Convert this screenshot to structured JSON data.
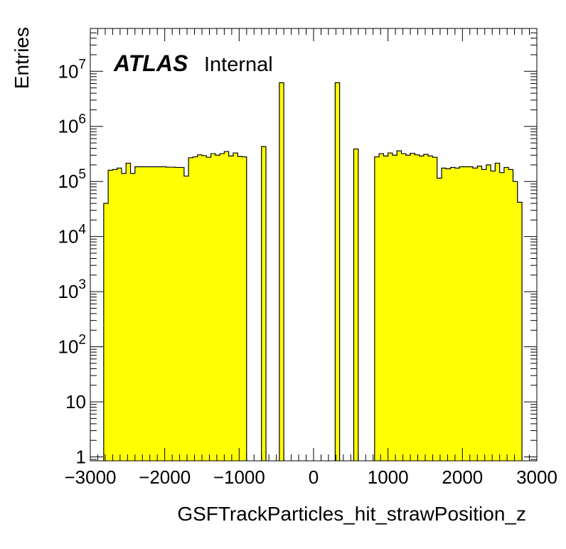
{
  "chart_data": {
    "type": "histogram",
    "xlabel": "GSFTrackParticles_hit_strawPosition_z",
    "ylabel": "Entries",
    "xlim": [
      -3000,
      3000
    ],
    "ylim": [
      0.85,
      60000000
    ],
    "log_y": true,
    "grid": false,
    "label": {
      "experiment": "ATLAS",
      "status": "Internal"
    },
    "x_tick_labels": [
      "−3000",
      "−2000",
      "−1000",
      "0",
      "1000",
      "2000",
      "3000"
    ],
    "y_ticks": [
      {
        "value": 1,
        "base": "1",
        "exp": ""
      },
      {
        "value": 10,
        "base": "10",
        "exp": ""
      },
      {
        "value": 100,
        "base": "10",
        "exp": "2"
      },
      {
        "value": 1000,
        "base": "10",
        "exp": "3"
      },
      {
        "value": 10000,
        "base": "10",
        "exp": "4"
      },
      {
        "value": 100000,
        "base": "10",
        "exp": "5"
      },
      {
        "value": 1000000,
        "base": "10",
        "exp": "6"
      },
      {
        "value": 10000000,
        "base": "10",
        "exp": "7"
      }
    ],
    "bin_width": 60,
    "fill_color": "#ffff00",
    "line_color": "#000000",
    "bins": [
      {
        "x0": -2820,
        "y": 40000
      },
      {
        "x0": -2760,
        "y": 160000
      },
      {
        "x0": -2700,
        "y": 165000
      },
      {
        "x0": -2640,
        "y": 175000
      },
      {
        "x0": -2580,
        "y": 140000
      },
      {
        "x0": -2520,
        "y": 215000
      },
      {
        "x0": -2460,
        "y": 140000
      },
      {
        "x0": -2400,
        "y": 185000
      },
      {
        "x0": -2340,
        "y": 185000
      },
      {
        "x0": -2280,
        "y": 185000
      },
      {
        "x0": -2220,
        "y": 185000
      },
      {
        "x0": -2160,
        "y": 185000
      },
      {
        "x0": -2100,
        "y": 185000
      },
      {
        "x0": -2040,
        "y": 185000
      },
      {
        "x0": -1980,
        "y": 182000
      },
      {
        "x0": -1920,
        "y": 182000
      },
      {
        "x0": -1860,
        "y": 180000
      },
      {
        "x0": -1800,
        "y": 180000
      },
      {
        "x0": -1740,
        "y": 125000
      },
      {
        "x0": -1680,
        "y": 270000
      },
      {
        "x0": -1620,
        "y": 280000
      },
      {
        "x0": -1560,
        "y": 305000
      },
      {
        "x0": -1500,
        "y": 295000
      },
      {
        "x0": -1440,
        "y": 275000
      },
      {
        "x0": -1380,
        "y": 320000
      },
      {
        "x0": -1320,
        "y": 300000
      },
      {
        "x0": -1260,
        "y": 320000
      },
      {
        "x0": -1200,
        "y": 350000
      },
      {
        "x0": -1140,
        "y": 290000
      },
      {
        "x0": -1080,
        "y": 330000
      },
      {
        "x0": -1020,
        "y": 285000
      },
      {
        "x0": -960,
        "y": 280000
      },
      {
        "x0": -700,
        "y": 430000
      },
      {
        "x0": -460,
        "y": 6200000
      },
      {
        "x0": 290,
        "y": 6200000
      },
      {
        "x0": 540,
        "y": 390000
      },
      {
        "x0": 820,
        "y": 280000
      },
      {
        "x0": 880,
        "y": 320000
      },
      {
        "x0": 940,
        "y": 290000
      },
      {
        "x0": 1000,
        "y": 330000
      },
      {
        "x0": 1060,
        "y": 300000
      },
      {
        "x0": 1120,
        "y": 360000
      },
      {
        "x0": 1180,
        "y": 320000
      },
      {
        "x0": 1240,
        "y": 300000
      },
      {
        "x0": 1300,
        "y": 325000
      },
      {
        "x0": 1360,
        "y": 305000
      },
      {
        "x0": 1420,
        "y": 290000
      },
      {
        "x0": 1480,
        "y": 310000
      },
      {
        "x0": 1540,
        "y": 290000
      },
      {
        "x0": 1600,
        "y": 275000
      },
      {
        "x0": 1660,
        "y": 115000
      },
      {
        "x0": 1720,
        "y": 175000
      },
      {
        "x0": 1780,
        "y": 170000
      },
      {
        "x0": 1840,
        "y": 180000
      },
      {
        "x0": 1900,
        "y": 175000
      },
      {
        "x0": 1960,
        "y": 185000
      },
      {
        "x0": 2020,
        "y": 185000
      },
      {
        "x0": 2080,
        "y": 185000
      },
      {
        "x0": 2140,
        "y": 175000
      },
      {
        "x0": 2200,
        "y": 190000
      },
      {
        "x0": 2260,
        "y": 165000
      },
      {
        "x0": 2320,
        "y": 200000
      },
      {
        "x0": 2380,
        "y": 155000
      },
      {
        "x0": 2440,
        "y": 215000
      },
      {
        "x0": 2500,
        "y": 145000
      },
      {
        "x0": 2560,
        "y": 180000
      },
      {
        "x0": 2620,
        "y": 165000
      },
      {
        "x0": 2680,
        "y": 100000
      },
      {
        "x0": 2740,
        "y": 42000
      }
    ]
  }
}
